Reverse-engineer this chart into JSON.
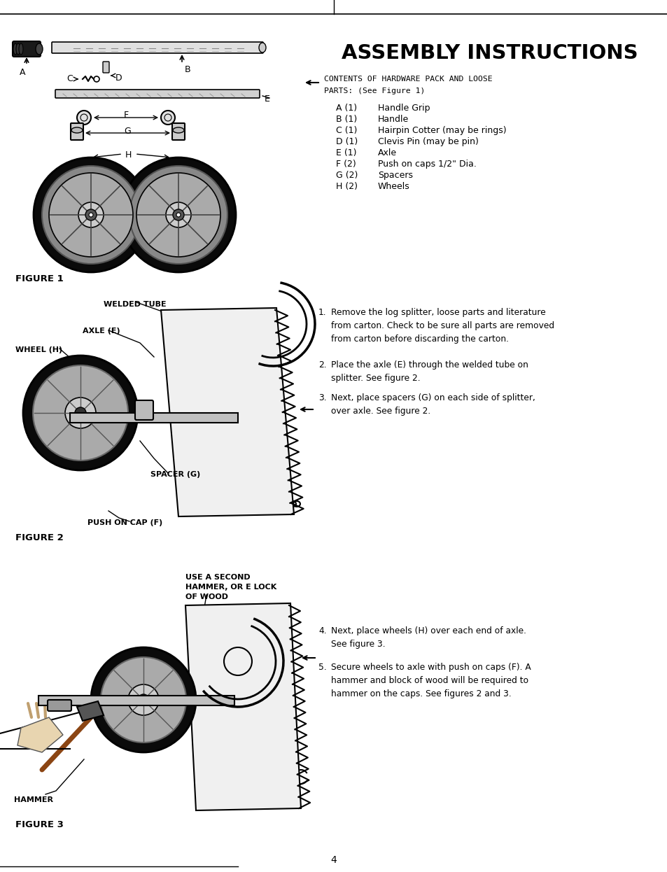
{
  "title": "ASSEMBLY INSTRUCTIONS",
  "background_color": "#ffffff",
  "page_number": "4",
  "figure1_label": "FIGURE 1",
  "figure2_label": "FIGURE 2",
  "figure3_label": "FIGURE 3",
  "parts_list": [
    [
      "A (1)",
      "Handle Grip"
    ],
    [
      "B (1)",
      "Handle"
    ],
    [
      "C (1)",
      "Hairpin Cotter (may be rings)"
    ],
    [
      "D (1)",
      "Clevis Pin (may be pin)"
    ],
    [
      "E (1)",
      "Axle"
    ],
    [
      "F (2)",
      "Push on caps 1/2\" Dia."
    ],
    [
      "G (2)",
      "Spacers"
    ],
    [
      "H (2)",
      "Wheels"
    ]
  ],
  "step1": "Remove the log splitter, loose parts and literature\nfrom carton. Check to be sure all parts are removed\nfrom carton before discarding the carton.",
  "step2": "Place the axle (E) through the welded tube on\nsplitter. See figure 2.",
  "step3": "Next, place spacers (G) on each side of splitter,\nover axle. See figure 2.",
  "step4": "Next, place wheels (H) over each end of axle.\nSee figure 3.",
  "step5": "Secure wheels to axle with push on caps (F). A\nhammer and block of wood will be required to\nhammer on the caps. See figures 2 and 3.",
  "text_color": "#000000"
}
